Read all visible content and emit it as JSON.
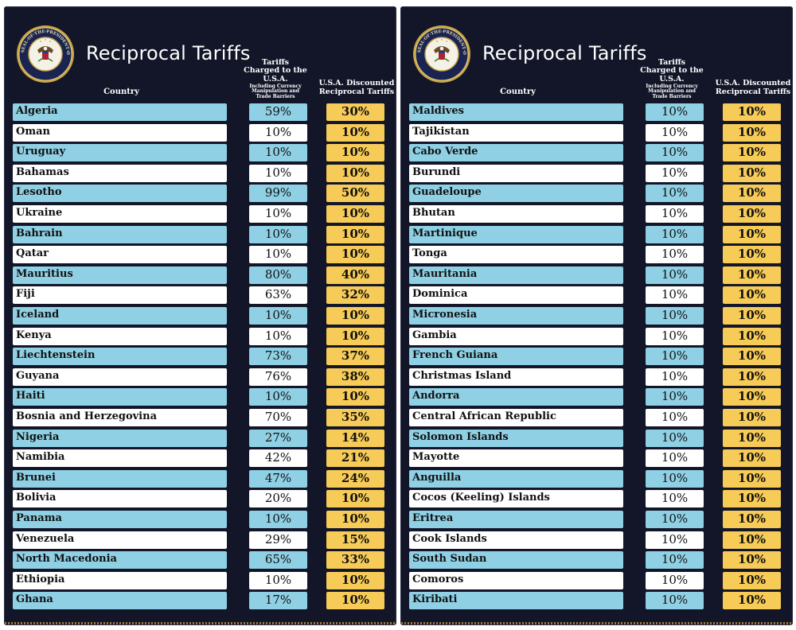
{
  "colors": {
    "background": "#121628",
    "row_blue": "#8fd0e4",
    "row_white": "#ffffff",
    "discount_gold": "#f7cb57"
  },
  "panels": [
    {
      "title": "Reciprocal Tariffs",
      "seal_text": "SEAL OF THE PRESIDENT OF THE UNITED STATES",
      "headers": {
        "country": "Country",
        "charged_main": "Tariffs Charged to the U.S.A.",
        "charged_sub": "Including Currency Manipulation and Trade Barriers",
        "discounted": "U.S.A. Discounted Reciprocal Tariffs"
      },
      "rows": [
        {
          "country": "Algeria",
          "charged": "59%",
          "discounted": "30%"
        },
        {
          "country": "Oman",
          "charged": "10%",
          "discounted": "10%"
        },
        {
          "country": "Uruguay",
          "charged": "10%",
          "discounted": "10%"
        },
        {
          "country": "Bahamas",
          "charged": "10%",
          "discounted": "10%"
        },
        {
          "country": "Lesotho",
          "charged": "99%",
          "discounted": "50%"
        },
        {
          "country": "Ukraine",
          "charged": "10%",
          "discounted": "10%"
        },
        {
          "country": "Bahrain",
          "charged": "10%",
          "discounted": "10%"
        },
        {
          "country": "Qatar",
          "charged": "10%",
          "discounted": "10%"
        },
        {
          "country": "Mauritius",
          "charged": "80%",
          "discounted": "40%"
        },
        {
          "country": "Fiji",
          "charged": "63%",
          "discounted": "32%"
        },
        {
          "country": "Iceland",
          "charged": "10%",
          "discounted": "10%"
        },
        {
          "country": "Kenya",
          "charged": "10%",
          "discounted": "10%"
        },
        {
          "country": "Liechtenstein",
          "charged": "73%",
          "discounted": "37%"
        },
        {
          "country": "Guyana",
          "charged": "76%",
          "discounted": "38%"
        },
        {
          "country": "Haiti",
          "charged": "10%",
          "discounted": "10%"
        },
        {
          "country": "Bosnia and Herzegovina",
          "charged": "70%",
          "discounted": "35%"
        },
        {
          "country": "Nigeria",
          "charged": "27%",
          "discounted": "14%"
        },
        {
          "country": "Namibia",
          "charged": "42%",
          "discounted": "21%"
        },
        {
          "country": "Brunei",
          "charged": "47%",
          "discounted": "24%"
        },
        {
          "country": "Bolivia",
          "charged": "20%",
          "discounted": "10%"
        },
        {
          "country": "Panama",
          "charged": "10%",
          "discounted": "10%"
        },
        {
          "country": "Venezuela",
          "charged": "29%",
          "discounted": "15%"
        },
        {
          "country": "North Macedonia",
          "charged": "65%",
          "discounted": "33%"
        },
        {
          "country": "Ethiopia",
          "charged": "10%",
          "discounted": "10%"
        },
        {
          "country": "Ghana",
          "charged": "17%",
          "discounted": "10%"
        }
      ]
    },
    {
      "title": "Reciprocal Tariffs",
      "seal_text": "SEAL OF THE PRESIDENT OF THE UNITED STATES",
      "headers": {
        "country": "Country",
        "charged_main": "Tariffs Charged to the U.S.A.",
        "charged_sub": "Including Currency Manipulation and Trade Barriers",
        "discounted": "U.S.A. Discounted Reciprocal Tariffs"
      },
      "rows": [
        {
          "country": "Maldives",
          "charged": "10%",
          "discounted": "10%"
        },
        {
          "country": "Tajikistan",
          "charged": "10%",
          "discounted": "10%"
        },
        {
          "country": "Cabo Verde",
          "charged": "10%",
          "discounted": "10%"
        },
        {
          "country": "Burundi",
          "charged": "10%",
          "discounted": "10%"
        },
        {
          "country": "Guadeloupe",
          "charged": "10%",
          "discounted": "10%"
        },
        {
          "country": "Bhutan",
          "charged": "10%",
          "discounted": "10%"
        },
        {
          "country": "Martinique",
          "charged": "10%",
          "discounted": "10%"
        },
        {
          "country": "Tonga",
          "charged": "10%",
          "discounted": "10%"
        },
        {
          "country": "Mauritania",
          "charged": "10%",
          "discounted": "10%"
        },
        {
          "country": "Dominica",
          "charged": "10%",
          "discounted": "10%"
        },
        {
          "country": "Micronesia",
          "charged": "10%",
          "discounted": "10%"
        },
        {
          "country": "Gambia",
          "charged": "10%",
          "discounted": "10%"
        },
        {
          "country": "French Guiana",
          "charged": "10%",
          "discounted": "10%"
        },
        {
          "country": "Christmas Island",
          "charged": "10%",
          "discounted": "10%"
        },
        {
          "country": "Andorra",
          "charged": "10%",
          "discounted": "10%"
        },
        {
          "country": "Central African Republic",
          "charged": "10%",
          "discounted": "10%"
        },
        {
          "country": "Solomon Islands",
          "charged": "10%",
          "discounted": "10%"
        },
        {
          "country": "Mayotte",
          "charged": "10%",
          "discounted": "10%"
        },
        {
          "country": "Anguilla",
          "charged": "10%",
          "discounted": "10%"
        },
        {
          "country": "Cocos (Keeling) Islands",
          "charged": "10%",
          "discounted": "10%"
        },
        {
          "country": "Eritrea",
          "charged": "10%",
          "discounted": "10%"
        },
        {
          "country": "Cook Islands",
          "charged": "10%",
          "discounted": "10%"
        },
        {
          "country": "South Sudan",
          "charged": "10%",
          "discounted": "10%"
        },
        {
          "country": "Comoros",
          "charged": "10%",
          "discounted": "10%"
        },
        {
          "country": "Kiribati",
          "charged": "10%",
          "discounted": "10%"
        }
      ]
    }
  ]
}
